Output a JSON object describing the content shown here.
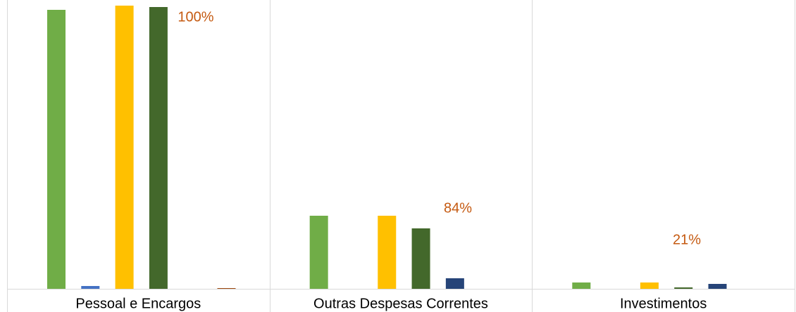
{
  "chart_data": {
    "type": "bar",
    "categories": [
      "Pessoal e Encargos",
      "Outras Despesas Correntes",
      "Investimentos"
    ],
    "series": [
      {
        "color": "#70ad47",
        "values": [
          397,
          104,
          9
        ]
      },
      {
        "color": "#4472c4",
        "values": [
          4,
          0,
          0
        ]
      },
      {
        "color": "#ffc000",
        "values": [
          403,
          104,
          9
        ]
      },
      {
        "color": "#43682b",
        "values": [
          401,
          86,
          2
        ]
      },
      {
        "color": "#264478",
        "values": [
          0,
          15,
          7
        ]
      },
      {
        "color": "#9e480e",
        "values": [
          1,
          0,
          0
        ]
      }
    ],
    "annotations": [
      {
        "value": 100,
        "label": "100%"
      },
      {
        "value": 84,
        "label": "84%"
      },
      {
        "value": 21,
        "label": "21%"
      }
    ],
    "ylim": [
      0,
      411
    ]
  }
}
